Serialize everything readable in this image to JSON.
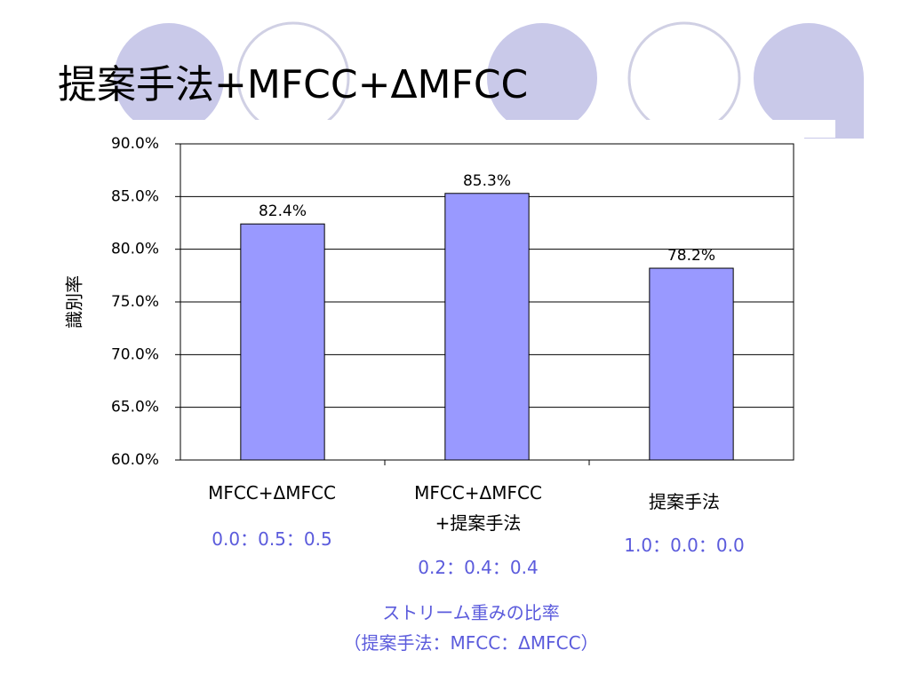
{
  "chart_data": {
    "type": "bar",
    "title": "提案手法+MFCC+ΔMFCC",
    "ylabel": "識別率",
    "categories": [
      "MFCC+ΔMFCC",
      "MFCC+ΔMFCC\n+提案手法",
      "提案手法"
    ],
    "values": [
      82.4,
      85.3,
      78.2
    ],
    "value_labels": [
      "82.4%",
      "85.3%",
      "78.2%"
    ],
    "annotations": [
      "0.0：0.5：0.5",
      "0.2：0.4：0.4",
      "1.0：0.0：0.0"
    ],
    "xlabel": "ストリーム重みの比率\n（提案手法：MFCC：ΔMFCC）",
    "color": "#9999ff",
    "ylim": [
      60,
      90
    ],
    "yticks": [
      {
        "value": 60,
        "label": "60.0%"
      },
      {
        "value": 65,
        "label": "65.0%"
      },
      {
        "value": 70,
        "label": "70.0%"
      },
      {
        "value": 75,
        "label": "75.0%"
      },
      {
        "value": 80,
        "label": "80.0%"
      },
      {
        "value": 85,
        "label": "85.0%"
      },
      {
        "value": 90,
        "label": "90.0%"
      }
    ],
    "grid": true
  }
}
